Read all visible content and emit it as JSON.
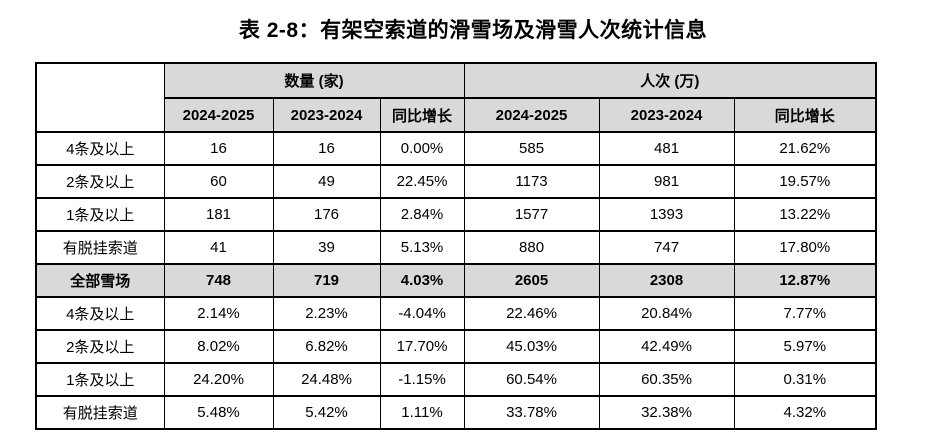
{
  "title": "表 2-8：有架空索道的滑雪场及滑雪人次统计信息",
  "table": {
    "corner_label": "",
    "groups": [
      {
        "label": "数量 (家)",
        "columns": [
          "2024-2025",
          "2023-2024",
          "同比增长"
        ]
      },
      {
        "label": "人次 (万)",
        "columns": [
          "2024-2025",
          "2023-2024",
          "同比增长"
        ]
      }
    ],
    "rows": [
      {
        "label": "4条及以上",
        "emphasis": false,
        "cells": [
          "16",
          "16",
          "0.00%",
          "585",
          "481",
          "21.62%"
        ]
      },
      {
        "label": "2条及以上",
        "emphasis": false,
        "cells": [
          "60",
          "49",
          "22.45%",
          "1173",
          "981",
          "19.57%"
        ]
      },
      {
        "label": "1条及以上",
        "emphasis": false,
        "cells": [
          "181",
          "176",
          "2.84%",
          "1577",
          "1393",
          "13.22%"
        ]
      },
      {
        "label": "有脱挂索道",
        "emphasis": false,
        "cells": [
          "41",
          "39",
          "5.13%",
          "880",
          "747",
          "17.80%"
        ]
      },
      {
        "label": "全部雪场",
        "emphasis": true,
        "cells": [
          "748",
          "719",
          "4.03%",
          "2605",
          "2308",
          "12.87%"
        ]
      },
      {
        "label": "4条及以上",
        "emphasis": false,
        "cells": [
          "2.14%",
          "2.23%",
          "-4.04%",
          "22.46%",
          "20.84%",
          "7.77%"
        ]
      },
      {
        "label": "2条及以上",
        "emphasis": false,
        "cells": [
          "8.02%",
          "6.82%",
          "17.70%",
          "45.03%",
          "42.49%",
          "5.97%"
        ]
      },
      {
        "label": "1条及以上",
        "emphasis": false,
        "cells": [
          "24.20%",
          "24.48%",
          "-1.15%",
          "60.54%",
          "60.35%",
          "0.31%"
        ]
      },
      {
        "label": "有脱挂索道",
        "emphasis": false,
        "cells": [
          "5.48%",
          "5.42%",
          "1.11%",
          "33.78%",
          "32.38%",
          "4.32%"
        ]
      }
    ],
    "colors": {
      "header_bg": "#d9d9d9",
      "emphasis_row_bg": "#d9d9d9",
      "border": "#000000",
      "text": "#000000"
    }
  }
}
